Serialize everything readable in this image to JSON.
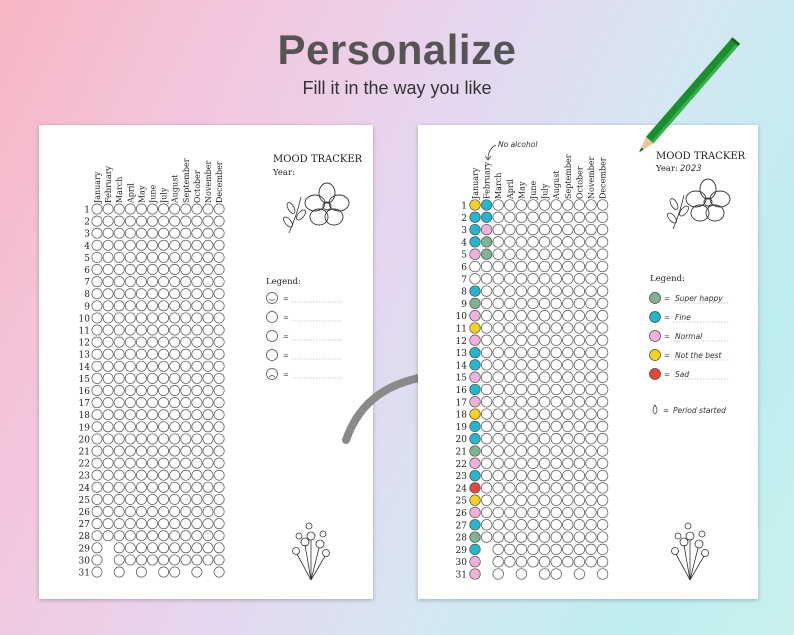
{
  "headline": "Personalize",
  "subheadline": "Fill it in the way you like",
  "months": [
    "January",
    "February",
    "March",
    "April",
    "May",
    "June",
    "July",
    "August",
    "September",
    "October",
    "November",
    "December"
  ],
  "days": [
    "1",
    "2",
    "3",
    "4",
    "5",
    "6",
    "7",
    "8",
    "9",
    "10",
    "11",
    "12",
    "13",
    "14",
    "15",
    "16",
    "17",
    "18",
    "19",
    "20",
    "21",
    "22",
    "23",
    "24",
    "25",
    "26",
    "27",
    "28",
    "29",
    "30",
    "31"
  ],
  "blank_page": {
    "title": "MOOD TRACKER",
    "year_label": "Year:",
    "legend_title": "Legend:",
    "legend_eq": "="
  },
  "filled_page": {
    "title": "MOOD TRACKER",
    "year_label": "Year:",
    "year_value": "2023",
    "annotation": "No alcohol",
    "legend_title": "Legend:",
    "legend_eq": "=",
    "legend": [
      {
        "label": "Super happy",
        "color": "#7fb393"
      },
      {
        "label": "Fine",
        "color": "#21b7cc"
      },
      {
        "label": "Normal",
        "color": "#f2b2dc"
      },
      {
        "label": "Not the best",
        "color": "#f4d31c"
      },
      {
        "label": "Sad",
        "color": "#e6473a"
      }
    ],
    "period_label": "Period started",
    "january_moods": [
      "yellow",
      "teal",
      "teal",
      "teal",
      "pink",
      "",
      "",
      "teal",
      "green",
      "pink",
      "yellow",
      "pink",
      "teal",
      "teal",
      "pink",
      "teal",
      "pink",
      "yellow",
      "teal",
      "teal",
      "green",
      "pink",
      "teal",
      "red",
      "yellow",
      "pink",
      "teal",
      "green",
      "teal",
      "pink",
      "pink"
    ],
    "february_moods": [
      "teal",
      "teal",
      "pink",
      "green",
      "green",
      "",
      "",
      "",
      "",
      "",
      "",
      "",
      "",
      "",
      "",
      "",
      "",
      "",
      "",
      "",
      "",
      "",
      "",
      "",
      "",
      "",
      "",
      "",
      "",
      "",
      ""
    ]
  },
  "colors": {
    "yellow": "#f4d31c",
    "teal": "#21b7cc",
    "pink": "#f2b2dc",
    "green": "#7fb393",
    "red": "#e6473a",
    "pencil": "#1a8f2e",
    "arrow": "#8a8a8a"
  }
}
